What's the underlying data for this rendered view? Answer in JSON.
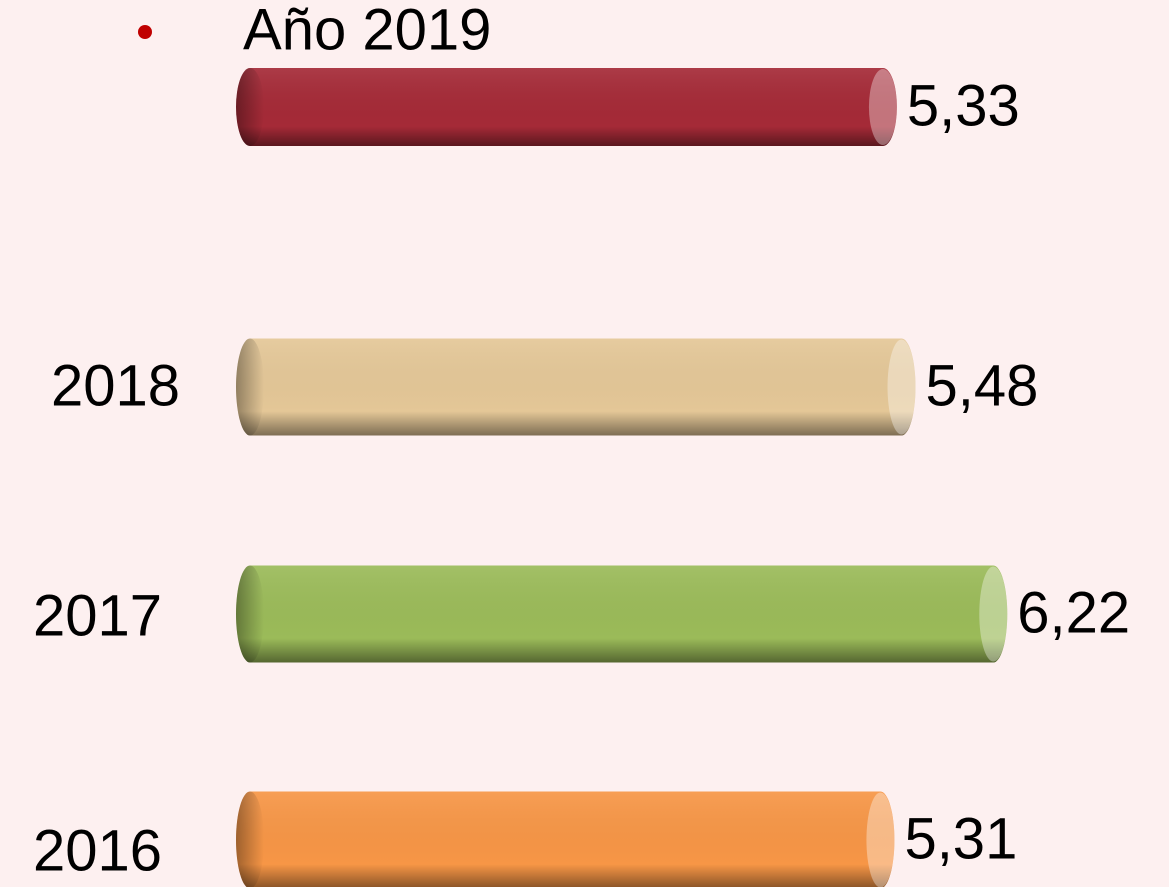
{
  "chart_data": {
    "type": "bar",
    "orientation": "horizontal",
    "categories": [
      "Año 2019",
      "2018",
      "2017",
      "2016"
    ],
    "values": [
      5.33,
      5.48,
      6.22,
      5.31
    ],
    "value_labels": [
      "5,33",
      "5,48",
      "6,22",
      "5,31"
    ],
    "colors": [
      "#a52a37",
      "#e4c797",
      "#9bbb59",
      "#f79646"
    ]
  }
}
